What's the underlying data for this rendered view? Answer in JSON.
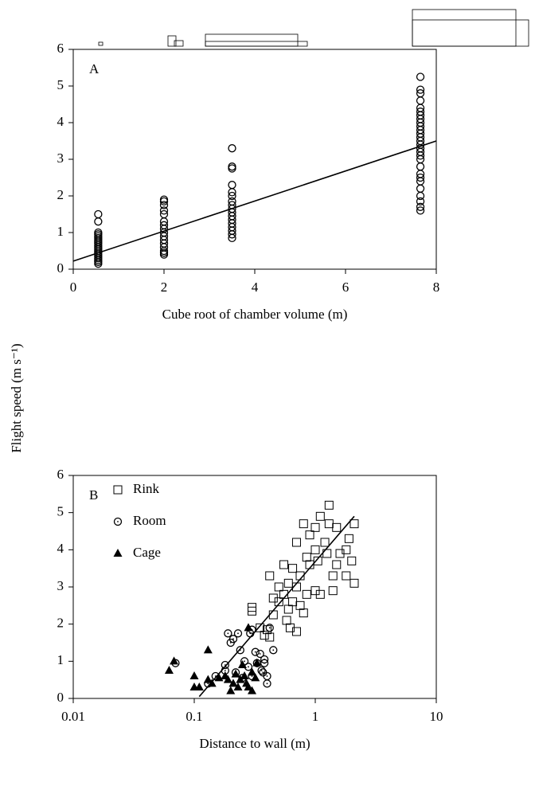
{
  "shared_y_label": "Flight speed (m s⁻¹)",
  "chart_data": [
    {
      "type": "scatter",
      "label": "A",
      "x_label": "Cube root of chamber volume (m)",
      "xlim": [
        0,
        8
      ],
      "xticks": [
        0,
        2,
        4,
        6,
        8
      ],
      "ylim": [
        0,
        6
      ],
      "yticks": [
        0,
        1,
        2,
        3,
        4,
        5,
        6
      ],
      "series": [
        {
          "marker": "circle",
          "color": "#000000",
          "x": [
            0.55,
            0.55,
            0.55,
            0.55,
            0.55,
            0.55,
            0.55,
            0.55,
            0.55,
            0.55,
            0.55,
            0.55,
            0.55,
            0.55,
            0.55,
            0.55,
            0.55,
            0.55,
            0.55,
            0.55,
            2,
            2,
            2,
            2,
            2,
            2,
            2,
            2,
            2,
            2,
            2,
            2,
            2,
            2,
            2,
            2,
            3.5,
            3.5,
            3.5,
            3.5,
            3.5,
            3.5,
            3.5,
            3.5,
            3.5,
            3.5,
            3.5,
            3.5,
            3.5,
            3.5,
            3.5,
            3.5,
            3.5,
            7.65,
            7.65,
            7.65,
            7.65,
            7.65,
            7.65,
            7.65,
            7.65,
            7.65,
            7.65,
            7.65,
            7.65,
            7.65,
            7.65,
            7.65,
            7.65,
            7.65,
            7.65,
            7.65,
            7.65,
            7.65,
            7.65,
            7.65,
            7.65,
            7.65,
            7.65,
            7.65,
            7.65
          ],
          "values": [
            0.15,
            0.2,
            0.25,
            0.3,
            0.35,
            0.4,
            0.45,
            0.5,
            0.55,
            0.6,
            0.65,
            0.7,
            0.75,
            0.8,
            0.85,
            0.9,
            0.95,
            1.0,
            1.3,
            1.5,
            0.4,
            0.45,
            0.5,
            0.6,
            0.7,
            0.8,
            0.9,
            1.0,
            1.1,
            1.2,
            1.3,
            1.5,
            1.6,
            1.75,
            1.85,
            1.9,
            0.85,
            0.95,
            1.05,
            1.15,
            1.25,
            1.35,
            1.45,
            1.55,
            1.65,
            1.75,
            1.85,
            2.0,
            2.1,
            2.3,
            2.75,
            2.8,
            3.3,
            1.6,
            1.7,
            1.85,
            2.0,
            2.2,
            2.4,
            2.6,
            2.8,
            3.0,
            3.2,
            3.4,
            3.6,
            3.8,
            4.0,
            4.2,
            4.4,
            4.6,
            4.8,
            4.9,
            5.25,
            2.5,
            3.1,
            3.3,
            3.5,
            3.7,
            3.9,
            4.1,
            4.3
          ]
        }
      ],
      "fit": {
        "x": [
          0,
          8
        ],
        "values": [
          0.22,
          3.5
        ]
      }
    },
    {
      "type": "scatter",
      "label": "B",
      "x_label": "Distance to wall (m)",
      "x_log": true,
      "legend": "upper left",
      "xlim": [
        0.01,
        10
      ],
      "xticks": [
        0.01,
        0.1,
        1,
        10
      ],
      "ylim": [
        0,
        6
      ],
      "yticks": [
        0,
        1,
        2,
        3,
        4,
        5,
        6
      ],
      "series": [
        {
          "name": "Rink",
          "marker": "square",
          "color": "#000000",
          "x": [
            0.3,
            0.3,
            0.4,
            0.42,
            0.45,
            0.45,
            0.5,
            0.5,
            0.55,
            0.55,
            0.58,
            0.6,
            0.6,
            0.62,
            0.65,
            0.65,
            0.7,
            0.7,
            0.7,
            0.75,
            0.75,
            0.8,
            0.8,
            0.85,
            0.85,
            0.9,
            0.9,
            1.0,
            1.0,
            1.0,
            1.05,
            1.1,
            1.1,
            1.2,
            1.25,
            1.3,
            1.3,
            1.4,
            1.4,
            1.5,
            1.5,
            1.6,
            1.8,
            1.8,
            1.9,
            2.0,
            2.1,
            2.1,
            0.35,
            0.38,
            0.42
          ],
          "values": [
            2.45,
            2.35,
            1.85,
            1.65,
            2.7,
            2.25,
            3.0,
            2.6,
            2.8,
            3.6,
            2.1,
            2.4,
            3.1,
            1.9,
            3.5,
            2.6,
            1.8,
            3.0,
            4.2,
            2.5,
            3.3,
            2.3,
            4.7,
            3.8,
            2.8,
            3.6,
            4.4,
            2.9,
            4.0,
            4.6,
            3.7,
            4.9,
            2.8,
            4.2,
            3.9,
            4.7,
            5.2,
            2.9,
            3.3,
            3.6,
            4.6,
            3.9,
            3.3,
            4.0,
            4.3,
            3.7,
            3.1,
            4.7,
            1.9,
            1.7,
            3.3
          ]
        },
        {
          "name": "Room",
          "marker": "circle-dot",
          "color": "#000000",
          "x": [
            0.07,
            0.13,
            0.15,
            0.18,
            0.18,
            0.19,
            0.2,
            0.21,
            0.22,
            0.23,
            0.24,
            0.25,
            0.26,
            0.28,
            0.29,
            0.3,
            0.3,
            0.32,
            0.33,
            0.35,
            0.36,
            0.37,
            0.38,
            0.38,
            0.4,
            0.4,
            0.42,
            0.45
          ],
          "values": [
            0.95,
            0.4,
            0.6,
            0.75,
            0.9,
            1.75,
            1.5,
            1.6,
            0.7,
            1.75,
            1.3,
            0.55,
            1.0,
            0.85,
            1.75,
            1.85,
            0.6,
            1.25,
            0.95,
            1.2,
            0.75,
            0.7,
            1.05,
            0.95,
            0.6,
            0.4,
            1.9,
            1.3
          ]
        },
        {
          "name": "Cage",
          "marker": "triangle",
          "color": "#000000",
          "x": [
            0.062,
            0.068,
            0.1,
            0.1,
            0.11,
            0.13,
            0.13,
            0.14,
            0.16,
            0.18,
            0.19,
            0.2,
            0.21,
            0.22,
            0.23,
            0.24,
            0.25,
            0.26,
            0.27,
            0.28,
            0.28,
            0.3,
            0.3,
            0.32,
            0.33
          ],
          "values": [
            0.75,
            1.0,
            0.6,
            0.3,
            0.3,
            1.3,
            0.5,
            0.4,
            0.55,
            0.6,
            0.5,
            0.2,
            0.4,
            0.65,
            0.3,
            0.5,
            0.9,
            0.6,
            0.4,
            0.3,
            1.9,
            0.2,
            0.7,
            0.55,
            0.95
          ]
        }
      ],
      "fit": {
        "x": [
          0.11,
          2.1
        ],
        "values": [
          0.05,
          4.9
        ]
      }
    }
  ]
}
